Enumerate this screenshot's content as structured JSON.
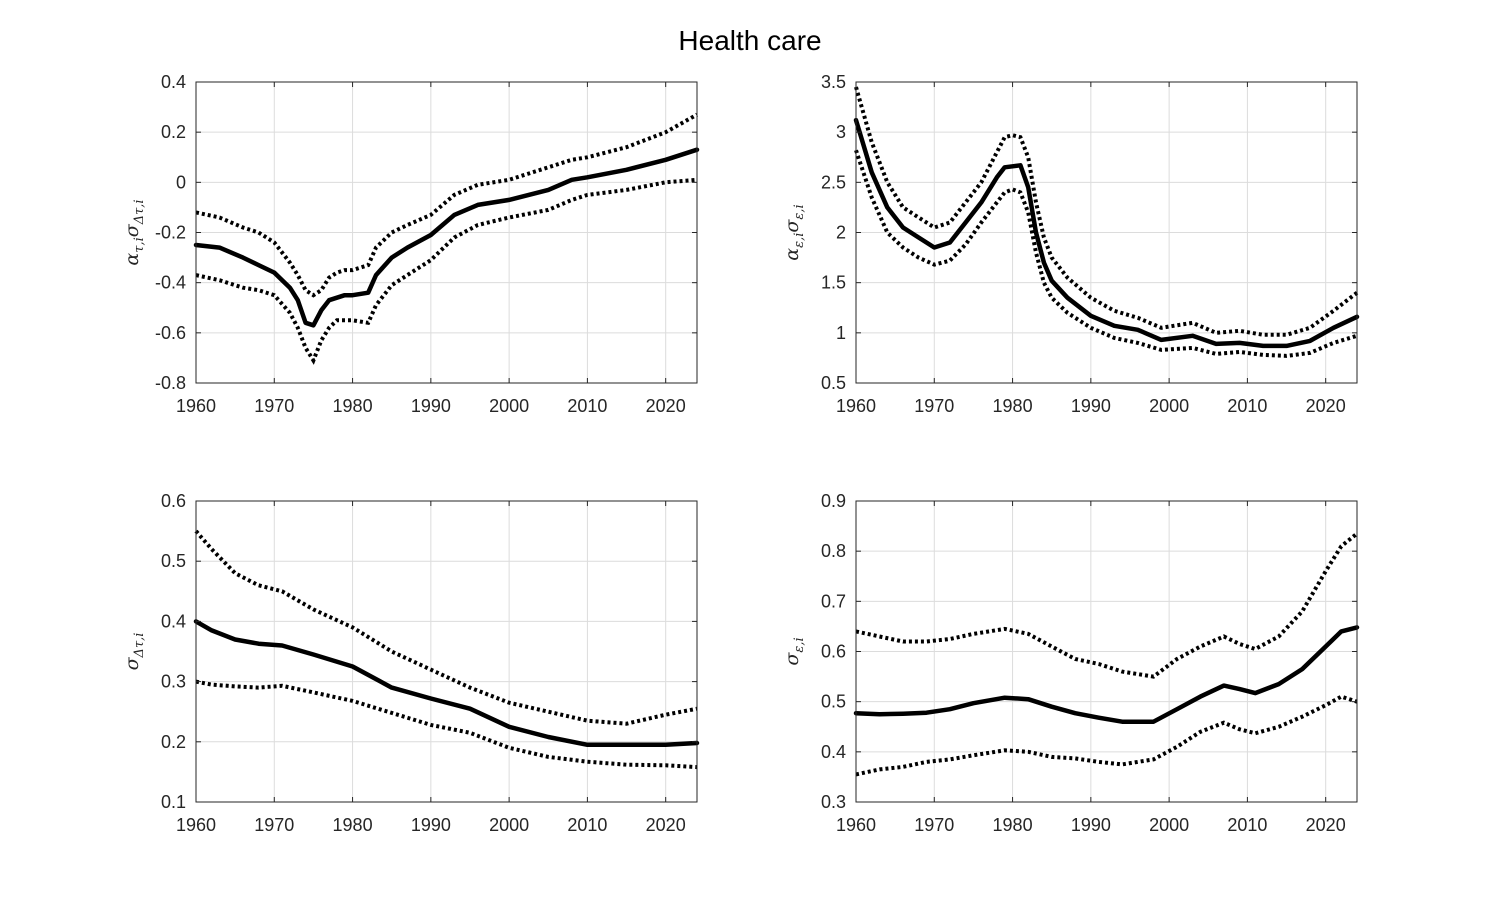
{
  "figure": {
    "title": "Health care"
  },
  "chart_data": [
    {
      "type": "line",
      "panel": "top-left",
      "ylabel": {
        "base": "α",
        "sub1": "τ,i",
        "mid": "σ",
        "sub2": "Δτ,i"
      },
      "xlim": [
        1960,
        2024
      ],
      "ylim": [
        -0.8,
        0.4
      ],
      "xticks": [
        1960,
        1970,
        1980,
        1990,
        2000,
        2010,
        2020
      ],
      "xtick_labels": [
        "1960",
        "1970",
        "1980",
        "1990",
        "2000",
        "2010",
        "2020"
      ],
      "yticks": [
        -0.8,
        -0.6,
        -0.4,
        -0.2,
        0,
        0.2,
        0.4
      ],
      "ytick_labels": [
        "-0.8",
        "-0.6",
        "-0.4",
        "-0.2",
        "0",
        "0.2",
        "0.4"
      ],
      "grid": true,
      "x": [
        1960,
        1963,
        1966,
        1968,
        1970,
        1972,
        1973,
        1974,
        1975,
        1976,
        1977,
        1978,
        1979,
        1980,
        1982,
        1983,
        1985,
        1987,
        1990,
        1993,
        1996,
        2000,
        2005,
        2008,
        2010,
        2015,
        2020,
        2024
      ],
      "series": [
        {
          "style": "dotted",
          "values": [
            -0.12,
            -0.14,
            -0.18,
            -0.2,
            -0.24,
            -0.32,
            -0.37,
            -0.43,
            -0.45,
            -0.43,
            -0.38,
            -0.36,
            -0.35,
            -0.35,
            -0.33,
            -0.26,
            -0.2,
            -0.17,
            -0.13,
            -0.05,
            -0.01,
            0.01,
            0.06,
            0.09,
            0.1,
            0.14,
            0.2,
            0.27
          ]
        },
        {
          "style": "solid",
          "values": [
            -0.25,
            -0.26,
            -0.3,
            -0.33,
            -0.36,
            -0.42,
            -0.47,
            -0.56,
            -0.57,
            -0.51,
            -0.47,
            -0.46,
            -0.45,
            -0.45,
            -0.44,
            -0.37,
            -0.3,
            -0.26,
            -0.21,
            -0.13,
            -0.09,
            -0.07,
            -0.03,
            0.01,
            0.02,
            0.05,
            0.09,
            0.13
          ]
        },
        {
          "style": "dotted",
          "values": [
            -0.37,
            -0.39,
            -0.42,
            -0.43,
            -0.45,
            -0.52,
            -0.58,
            -0.66,
            -0.71,
            -0.63,
            -0.58,
            -0.55,
            -0.55,
            -0.55,
            -0.56,
            -0.49,
            -0.41,
            -0.37,
            -0.31,
            -0.22,
            -0.17,
            -0.14,
            -0.11,
            -0.07,
            -0.05,
            -0.03,
            0.0,
            0.01
          ]
        }
      ]
    },
    {
      "type": "line",
      "panel": "top-right",
      "ylabel": {
        "base": "α",
        "sub1": "ε,i",
        "mid": "σ",
        "sub2": "ε,i"
      },
      "xlim": [
        1960,
        2024
      ],
      "ylim": [
        0.5,
        3.5
      ],
      "xticks": [
        1960,
        1970,
        1980,
        1990,
        2000,
        2010,
        2020
      ],
      "xtick_labels": [
        "1960",
        "1970",
        "1980",
        "1990",
        "2000",
        "2010",
        "2020"
      ],
      "yticks": [
        0.5,
        1,
        1.5,
        2,
        2.5,
        3,
        3.5
      ],
      "ytick_labels": [
        "0.5",
        "1",
        "1.5",
        "2",
        "2.5",
        "3",
        "3.5"
      ],
      "grid": true,
      "x": [
        1960,
        1962,
        1964,
        1966,
        1968,
        1970,
        1972,
        1974,
        1976,
        1978,
        1979,
        1980,
        1981,
        1982,
        1983,
        1984,
        1985,
        1987,
        1990,
        1993,
        1996,
        1999,
        2003,
        2006,
        2009,
        2012,
        2015,
        2018,
        2021,
        2024
      ],
      "series": [
        {
          "style": "dotted",
          "values": [
            3.45,
            2.9,
            2.5,
            2.25,
            2.15,
            2.05,
            2.1,
            2.3,
            2.5,
            2.8,
            2.95,
            2.97,
            2.95,
            2.75,
            2.3,
            1.95,
            1.75,
            1.55,
            1.35,
            1.22,
            1.15,
            1.05,
            1.1,
            1.0,
            1.02,
            0.98,
            0.98,
            1.05,
            1.22,
            1.4
          ]
        },
        {
          "style": "solid",
          "values": [
            3.12,
            2.6,
            2.25,
            2.05,
            1.95,
            1.85,
            1.9,
            2.1,
            2.3,
            2.55,
            2.65,
            2.66,
            2.67,
            2.45,
            2.0,
            1.7,
            1.52,
            1.35,
            1.17,
            1.07,
            1.03,
            0.93,
            0.97,
            0.89,
            0.9,
            0.87,
            0.87,
            0.92,
            1.05,
            1.16
          ]
        },
        {
          "style": "dotted",
          "values": [
            2.82,
            2.35,
            2.0,
            1.85,
            1.75,
            1.68,
            1.72,
            1.88,
            2.1,
            2.3,
            2.4,
            2.43,
            2.4,
            2.2,
            1.8,
            1.5,
            1.35,
            1.2,
            1.05,
            0.95,
            0.9,
            0.83,
            0.85,
            0.79,
            0.81,
            0.78,
            0.77,
            0.8,
            0.9,
            0.97
          ]
        }
      ]
    },
    {
      "type": "line",
      "panel": "bottom-left",
      "ylabel": {
        "base": "σ",
        "sub1": "Δτ,i",
        "mid": "",
        "sub2": ""
      },
      "xlim": [
        1960,
        2024
      ],
      "ylim": [
        0.1,
        0.6
      ],
      "xticks": [
        1960,
        1970,
        1980,
        1990,
        2000,
        2010,
        2020
      ],
      "xtick_labels": [
        "1960",
        "1970",
        "1980",
        "1990",
        "2000",
        "2010",
        "2020"
      ],
      "yticks": [
        0.1,
        0.2,
        0.3,
        0.4,
        0.5,
        0.6
      ],
      "ytick_labels": [
        "0.1",
        "0.2",
        "0.3",
        "0.4",
        "0.5",
        "0.6"
      ],
      "grid": true,
      "x": [
        1960,
        1962,
        1965,
        1968,
        1971,
        1975,
        1980,
        1985,
        1990,
        1995,
        2000,
        2005,
        2010,
        2015,
        2020,
        2024
      ],
      "series": [
        {
          "style": "dotted",
          "values": [
            0.55,
            0.52,
            0.48,
            0.46,
            0.45,
            0.42,
            0.39,
            0.35,
            0.32,
            0.29,
            0.265,
            0.25,
            0.235,
            0.23,
            0.245,
            0.255
          ]
        },
        {
          "style": "solid",
          "values": [
            0.4,
            0.385,
            0.37,
            0.363,
            0.36,
            0.345,
            0.325,
            0.29,
            0.272,
            0.255,
            0.225,
            0.208,
            0.195,
            0.195,
            0.195,
            0.198
          ]
        },
        {
          "style": "dotted",
          "values": [
            0.3,
            0.295,
            0.292,
            0.29,
            0.293,
            0.282,
            0.268,
            0.248,
            0.228,
            0.215,
            0.19,
            0.175,
            0.167,
            0.162,
            0.161,
            0.158
          ]
        }
      ]
    },
    {
      "type": "line",
      "panel": "bottom-right",
      "ylabel": {
        "base": "σ",
        "sub1": "ε,i",
        "mid": "",
        "sub2": ""
      },
      "xlim": [
        1960,
        2024
      ],
      "ylim": [
        0.3,
        0.9
      ],
      "xticks": [
        1960,
        1970,
        1980,
        1990,
        2000,
        2010,
        2020
      ],
      "xtick_labels": [
        "1960",
        "1970",
        "1980",
        "1990",
        "2000",
        "2010",
        "2020"
      ],
      "yticks": [
        0.3,
        0.4,
        0.5,
        0.6,
        0.7,
        0.8,
        0.9
      ],
      "ytick_labels": [
        "0.3",
        "0.4",
        "0.5",
        "0.6",
        "0.7",
        "0.8",
        "0.9"
      ],
      "grid": true,
      "x": [
        1960,
        1963,
        1966,
        1969,
        1972,
        1975,
        1979,
        1982,
        1985,
        1988,
        1991,
        1994,
        1998,
        2001,
        2004,
        2007,
        2009,
        2011,
        2014,
        2017,
        2020,
        2022,
        2024
      ],
      "series": [
        {
          "style": "dotted",
          "values": [
            0.64,
            0.63,
            0.62,
            0.62,
            0.625,
            0.635,
            0.645,
            0.635,
            0.61,
            0.585,
            0.575,
            0.56,
            0.55,
            0.585,
            0.61,
            0.63,
            0.615,
            0.605,
            0.63,
            0.68,
            0.76,
            0.81,
            0.835
          ]
        },
        {
          "style": "solid",
          "values": [
            0.477,
            0.475,
            0.476,
            0.478,
            0.485,
            0.497,
            0.508,
            0.505,
            0.49,
            0.477,
            0.468,
            0.46,
            0.46,
            0.485,
            0.51,
            0.532,
            0.525,
            0.517,
            0.535,
            0.565,
            0.61,
            0.64,
            0.648
          ]
        },
        {
          "style": "dotted",
          "values": [
            0.355,
            0.365,
            0.37,
            0.38,
            0.385,
            0.393,
            0.403,
            0.4,
            0.39,
            0.387,
            0.38,
            0.375,
            0.385,
            0.41,
            0.44,
            0.458,
            0.445,
            0.437,
            0.45,
            0.47,
            0.493,
            0.51,
            0.5
          ]
        }
      ]
    }
  ]
}
